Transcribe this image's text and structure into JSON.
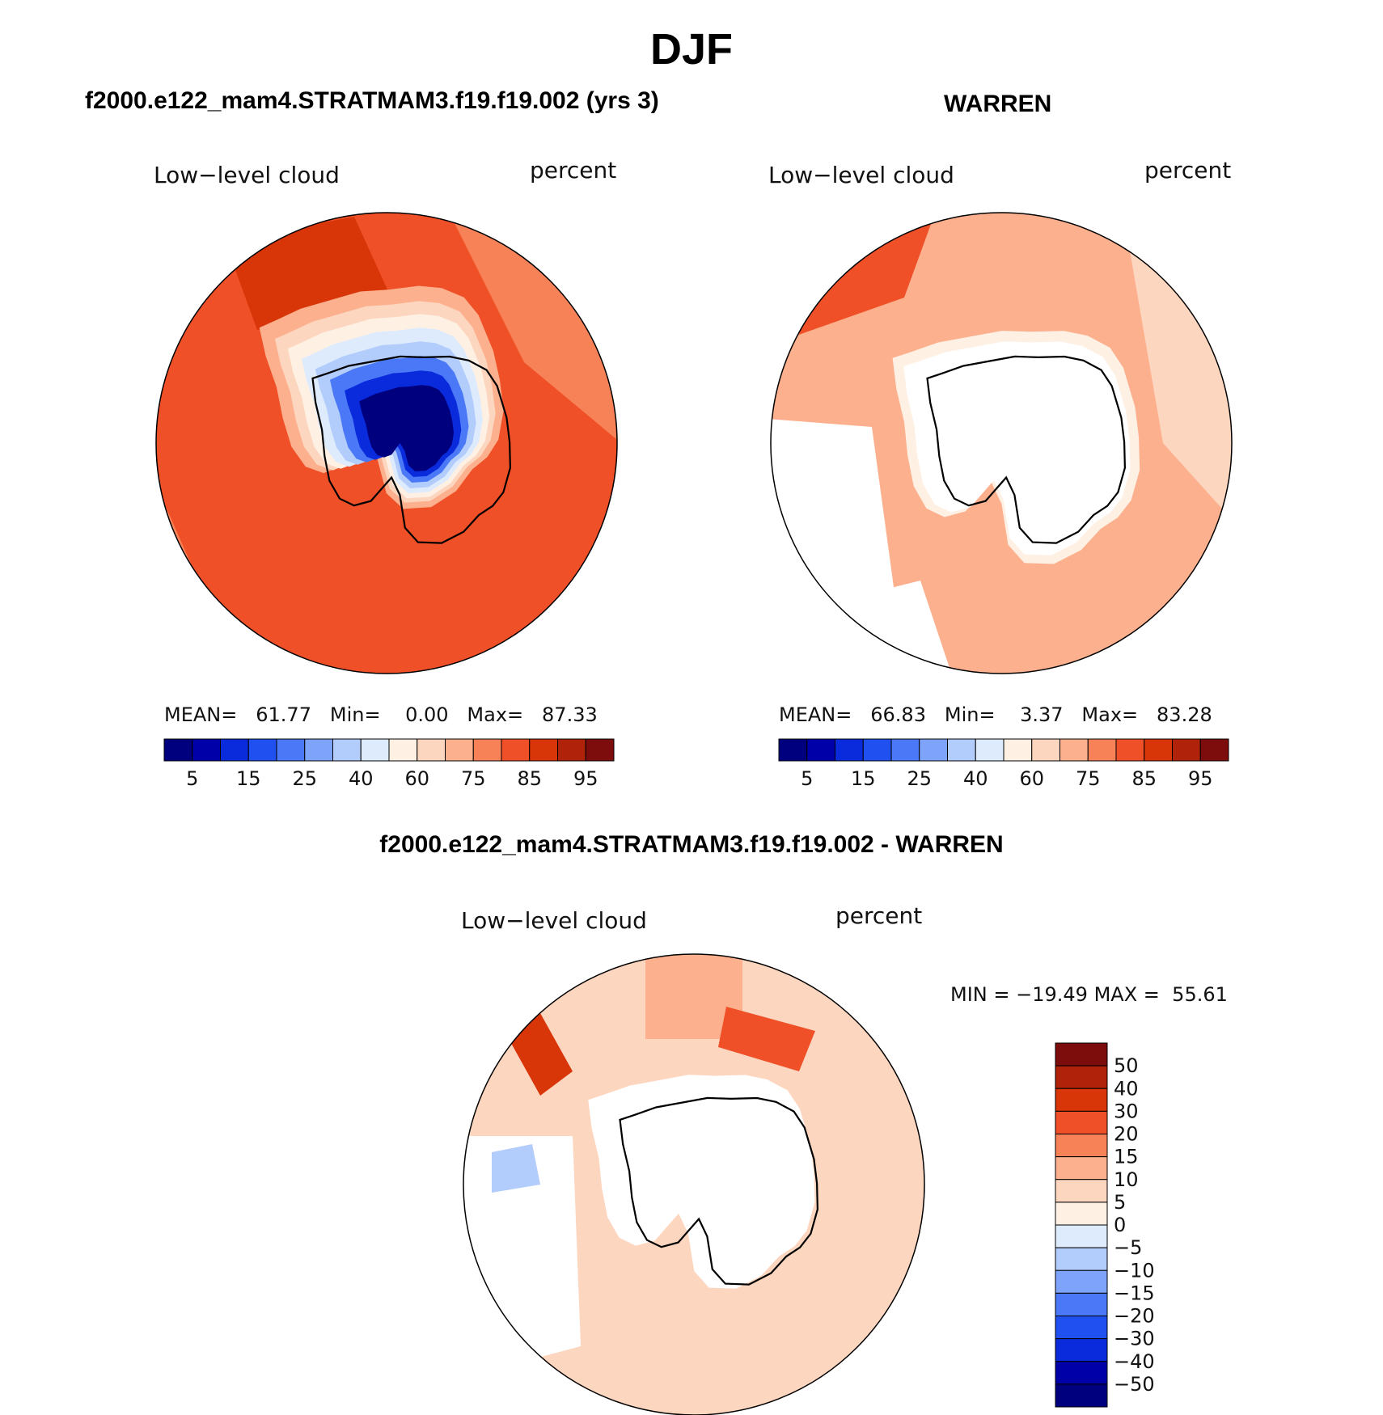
{
  "title": "DJF",
  "colors": {
    "abs": [
      "#00007f",
      "#0000a8",
      "#0a2bdc",
      "#2050f0",
      "#4a78f6",
      "#7ea3fa",
      "#b2ccfb",
      "#ddebfd",
      "#fff0e4",
      "#fdd6c0",
      "#fcb08e",
      "#f88258",
      "#ef5027",
      "#d83508",
      "#b0220a",
      "#7d0c0c"
    ],
    "diff": [
      "#00007f",
      "#0000a8",
      "#0a2bdc",
      "#2050f0",
      "#4a78f6",
      "#7ea3fa",
      "#b2ccfb",
      "#ddebfd",
      "#fff0e4",
      "#fdd6c0",
      "#fcb08e",
      "#f88258",
      "#ef5027",
      "#d83508",
      "#b0220a",
      "#7d0c0c"
    ]
  },
  "panels": {
    "model": {
      "title": "f2000.e122_mam4.STRATMAM3.f19.f19.002 (yrs 3)",
      "left_label": "Low−level cloud",
      "right_label": "percent",
      "stats": {
        "mean_label": "MEAN=",
        "mean": "61.77",
        "min_label": "Min=",
        "min": "0.00",
        "max_label": "Max=",
        "max": "87.33"
      }
    },
    "obs": {
      "title": "WARREN",
      "left_label": "Low−level cloud",
      "right_label": "percent",
      "stats": {
        "mean_label": "MEAN=",
        "mean": "66.83",
        "min_label": "Min=",
        "min": "3.37",
        "max_label": "Max=",
        "max": "83.28"
      }
    },
    "diff": {
      "title": "f2000.e122_mam4.STRATMAM3.f19.f19.002 - WARREN",
      "left_label": "Low−level cloud",
      "right_label": "percent",
      "stats": {
        "min_label": "MIN =",
        "min": "−19.49",
        "max_label": "MAX =",
        "max": "55.61"
      }
    }
  },
  "chart_data": [
    {
      "type": "heatmap",
      "projection": "south-polar-stereographic",
      "title": "f2000.e122_mam4.STRATMAM3.f19.f19.002 (yrs 3)",
      "variable": "Low-level cloud",
      "units": "percent",
      "levels": [
        5,
        10,
        15,
        20,
        25,
        30,
        40,
        50,
        60,
        70,
        75,
        80,
        85,
        90,
        95
      ],
      "colorbar_ticks": [
        "5",
        "15",
        "25",
        "40",
        "60",
        "75",
        "85",
        "95"
      ],
      "mean": 61.77,
      "min": 0.0,
      "max": 87.33
    },
    {
      "type": "heatmap",
      "projection": "south-polar-stereographic",
      "title": "WARREN",
      "variable": "Low-level cloud",
      "units": "percent",
      "levels": [
        5,
        10,
        15,
        20,
        25,
        30,
        40,
        50,
        60,
        70,
        75,
        80,
        85,
        90,
        95
      ],
      "colorbar_ticks": [
        "5",
        "15",
        "25",
        "40",
        "60",
        "75",
        "85",
        "95"
      ],
      "mean": 66.83,
      "min": 3.37,
      "max": 83.28
    },
    {
      "type": "heatmap",
      "projection": "south-polar-stereographic",
      "title": "f2000.e122_mam4.STRATMAM3.f19.f19.002 - WARREN",
      "variable": "Low-level cloud",
      "units": "percent",
      "levels": [
        -50,
        -40,
        -30,
        -20,
        -15,
        -10,
        -5,
        0,
        5,
        10,
        15,
        20,
        30,
        40,
        50
      ],
      "colorbar_ticks": [
        "50",
        "40",
        "30",
        "20",
        "15",
        "10",
        "5",
        "0",
        "−5",
        "−10",
        "−15",
        "−20",
        "−30",
        "−40",
        "−50"
      ],
      "min": -19.49,
      "max": 55.61
    }
  ]
}
